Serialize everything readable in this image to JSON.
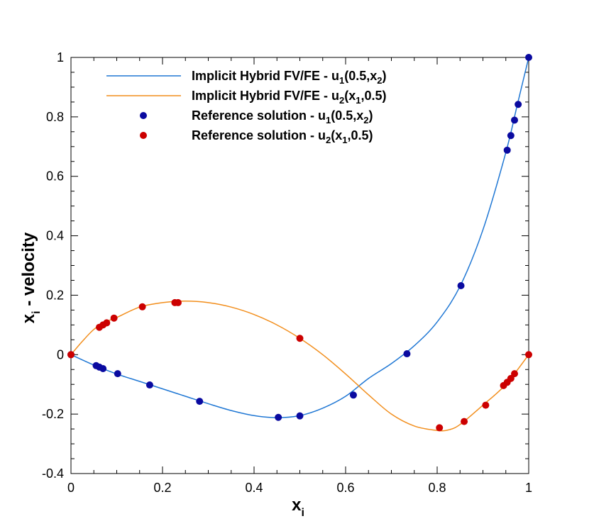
{
  "chart_data": {
    "type": "line",
    "xlabel": {
      "base": "x",
      "sub": "i"
    },
    "ylabel": {
      "base": "x",
      "sub": "i",
      "rest": " - velocity"
    },
    "xlim": [
      0,
      1
    ],
    "ylim": [
      -0.4,
      1
    ],
    "xticks": [
      0,
      0.2,
      0.4,
      0.6,
      0.8,
      1
    ],
    "xtick_labels": [
      "0",
      "0.2",
      "0.4",
      "0.6",
      "0.8",
      "1"
    ],
    "yticks": [
      -0.4,
      -0.2,
      0,
      0.2,
      0.4,
      0.6,
      0.8,
      1
    ],
    "ytick_labels": [
      "-0.4",
      "-0.2",
      "0",
      "0.2",
      "0.4",
      "0.6",
      "0.8",
      "1"
    ],
    "grid": false,
    "legend_position": "top-left",
    "series": [
      {
        "name": "Implicit Hybrid FV/FE - u1(0.5,x2)",
        "legend_parts": [
          "Implicit Hybrid FV/FE - u",
          "1",
          "(0.5,x",
          "2",
          ")"
        ],
        "style": "line",
        "color": "#1f77d4",
        "x": [
          0,
          0.05,
          0.1,
          0.15,
          0.2,
          0.25,
          0.3,
          0.35,
          0.4,
          0.45,
          0.5,
          0.55,
          0.6,
          0.65,
          0.7,
          0.75,
          0.8,
          0.85,
          0.9,
          0.95,
          0.975,
          1
        ],
        "y": [
          0,
          -0.035,
          -0.065,
          -0.09,
          -0.115,
          -0.14,
          -0.165,
          -0.188,
          -0.205,
          -0.212,
          -0.205,
          -0.18,
          -0.14,
          -0.08,
          -0.03,
          0.03,
          0.11,
          0.23,
          0.42,
          0.68,
          0.84,
          1.0
        ]
      },
      {
        "name": "Implicit Hybrid FV/FE - u2(x1,0.5)",
        "legend_parts": [
          "Implicit Hybrid FV/FE - u",
          "2",
          "(x",
          "1",
          ",0.5)"
        ],
        "style": "line",
        "color": "#f28e1c",
        "x": [
          0,
          0.025,
          0.05,
          0.075,
          0.1,
          0.15,
          0.2,
          0.25,
          0.3,
          0.35,
          0.4,
          0.45,
          0.5,
          0.55,
          0.6,
          0.65,
          0.7,
          0.75,
          0.8,
          0.825,
          0.85,
          0.9,
          0.95,
          1
        ],
        "y": [
          0,
          0.045,
          0.085,
          0.11,
          0.125,
          0.16,
          0.175,
          0.18,
          0.175,
          0.16,
          0.135,
          0.1,
          0.055,
          0.0,
          -0.065,
          -0.135,
          -0.2,
          -0.24,
          -0.255,
          -0.253,
          -0.235,
          -0.17,
          -0.1,
          0
        ]
      },
      {
        "name": "Reference solution - u1(0.5,x2)",
        "legend_parts": [
          "Reference solution - u",
          "1",
          "(0.5,x",
          "2",
          ")"
        ],
        "style": "markers",
        "color": "#0a0aa0",
        "x": [
          0,
          0.055,
          0.062,
          0.07,
          0.102,
          0.172,
          0.281,
          0.453,
          0.5,
          0.617,
          0.734,
          0.852,
          0.953,
          0.961,
          0.969,
          0.977,
          1
        ],
        "y": [
          0,
          -0.037,
          -0.042,
          -0.047,
          -0.064,
          -0.102,
          -0.157,
          -0.211,
          -0.206,
          -0.136,
          0.003,
          0.232,
          0.688,
          0.737,
          0.789,
          0.842,
          1.0
        ]
      },
      {
        "name": "Reference solution - u2(x1,0.5)",
        "legend_parts": [
          "Reference solution - u",
          "2",
          "(x",
          "1",
          ",0.5)"
        ],
        "style": "markers",
        "color": "#cc0000",
        "x": [
          0,
          0.062,
          0.07,
          0.078,
          0.094,
          0.156,
          0.227,
          0.234,
          0.5,
          0.805,
          0.859,
          0.906,
          0.945,
          0.953,
          0.961,
          0.969,
          1
        ],
        "y": [
          0,
          0.092,
          0.1,
          0.107,
          0.123,
          0.161,
          0.175,
          0.175,
          0.055,
          -0.246,
          -0.225,
          -0.17,
          -0.104,
          -0.093,
          -0.08,
          -0.064,
          0
        ]
      }
    ]
  }
}
